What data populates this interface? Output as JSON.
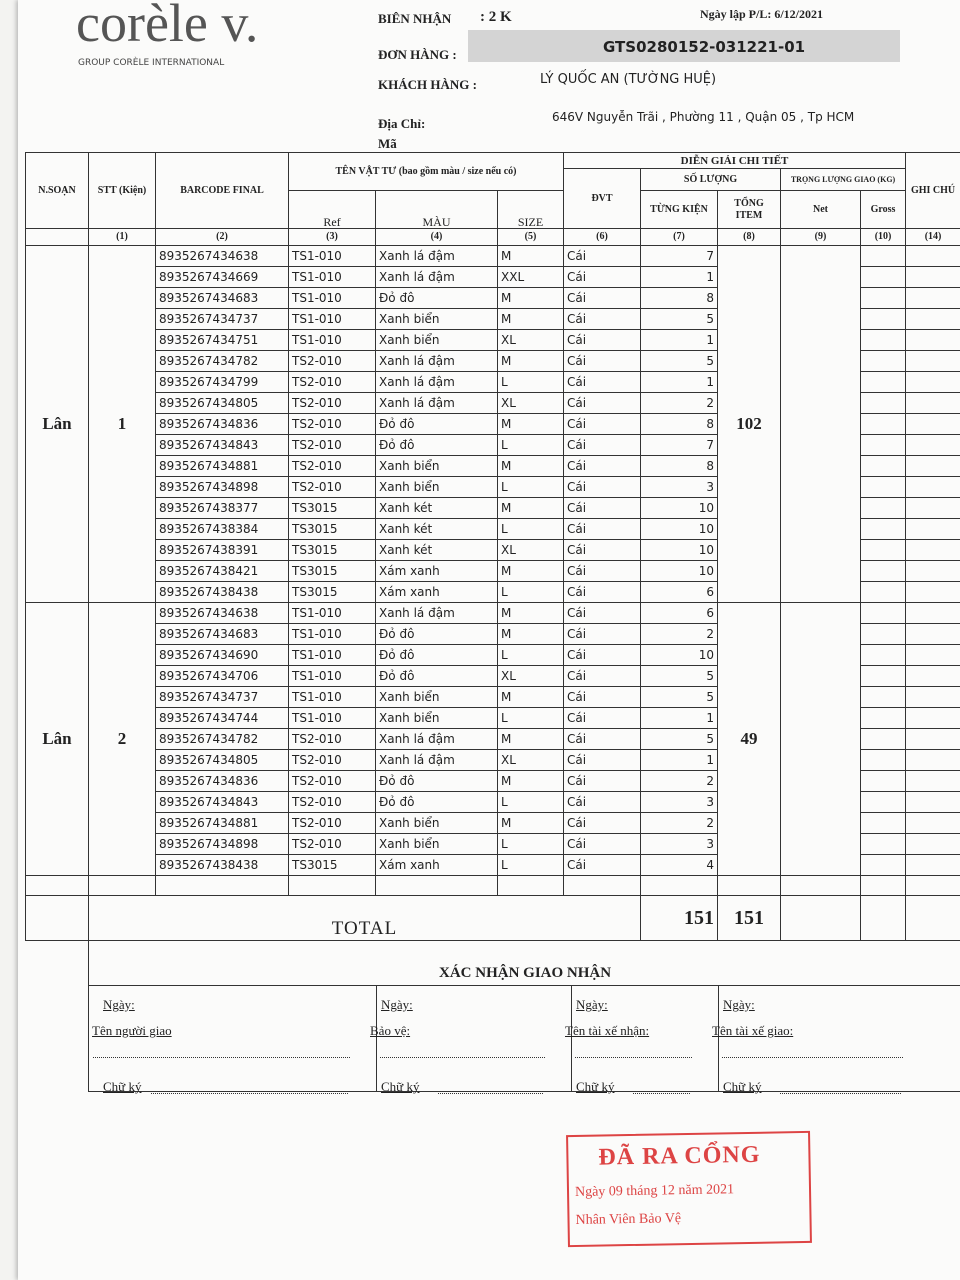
{
  "header": {
    "logo": "corèle v.",
    "logo_sub": "GROUP CORÈLE INTERNATIONAL",
    "receipt_label": "BIÊN NHẬN",
    "receipt_value": ": 2 K",
    "created": "Ngày lập P/L: 6/12/2021",
    "order_label": "ĐƠN HÀNG :",
    "order_value": "GTS0280152-031221-01",
    "customer_label": "KHÁCH HÀNG :",
    "customer_value": "LÝ QUỐC AN (TƯỜNG HUỆ)",
    "address_label": "Địa Chỉ:",
    "address_value": "646V Nguyễn Trãi , Phường 11 , Quận 05 , Tp HCM",
    "code_label": "Mã"
  },
  "table": {
    "headers": {
      "packer": "N.SOẠN",
      "stt": "STT (Kiện)",
      "barcode": "BARCODE FINAL",
      "material": "TÊN VẬT TƯ (bao gồm màu / size nếu có)",
      "ref": "Ref",
      "color": "MÀU",
      "size": "SIZE",
      "unit": "ĐVT",
      "detail": "DIỄN GIẢI CHI TIẾT",
      "quantity": "SỐ LƯỢNG",
      "per_package": "TỪNG KIỆN",
      "total_item": "TỔNG ITEM",
      "weight": "TRỌNG LƯỢNG GIAO (KG)",
      "net": "Net",
      "gross": "Gross",
      "note": "GHI CHÚ"
    },
    "col_numbers": [
      "(1)",
      "(2)",
      "(3)",
      "(4)",
      "(5)",
      "(6)",
      "(7)",
      "(8)",
      "(9)",
      "(10)",
      "(14)"
    ],
    "groups": [
      {
        "packer": "Lân",
        "stt": "1",
        "total_item": 102,
        "rows": [
          [
            "8935267434638",
            "TS1-010",
            "Xanh lá đậm",
            "M",
            "Cái",
            7
          ],
          [
            "8935267434669",
            "TS1-010",
            "Xanh lá đậm",
            "XXL",
            "Cái",
            1
          ],
          [
            "8935267434683",
            "TS1-010",
            "Đỏ đô",
            "M",
            "Cái",
            8
          ],
          [
            "8935267434737",
            "TS1-010",
            "Xanh biển",
            "M",
            "Cái",
            5
          ],
          [
            "8935267434751",
            "TS1-010",
            "Xanh biển",
            "XL",
            "Cái",
            1
          ],
          [
            "8935267434782",
            "TS2-010",
            "Xanh lá đậm",
            "M",
            "Cái",
            5
          ],
          [
            "8935267434799",
            "TS2-010",
            "Xanh lá đậm",
            "L",
            "Cái",
            1
          ],
          [
            "8935267434805",
            "TS2-010",
            "Xanh lá đậm",
            "XL",
            "Cái",
            2
          ],
          [
            "8935267434836",
            "TS2-010",
            "Đỏ đô",
            "M",
            "Cái",
            8
          ],
          [
            "8935267434843",
            "TS2-010",
            "Đỏ đô",
            "L",
            "Cái",
            7
          ],
          [
            "8935267434881",
            "TS2-010",
            "Xanh biển",
            "M",
            "Cái",
            8
          ],
          [
            "8935267434898",
            "TS2-010",
            "Xanh biển",
            "L",
            "Cái",
            3
          ],
          [
            "8935267438377",
            "TS3015",
            "Xanh két",
            "M",
            "Cái",
            10
          ],
          [
            "8935267438384",
            "TS3015",
            "Xanh két",
            "L",
            "Cái",
            10
          ],
          [
            "8935267438391",
            "TS3015",
            "Xanh két",
            "XL",
            "Cái",
            10
          ],
          [
            "8935267438421",
            "TS3015",
            "Xám xanh",
            "M",
            "Cái",
            10
          ],
          [
            "8935267438438",
            "TS3015",
            "Xám xanh",
            "L",
            "Cái",
            6
          ]
        ]
      },
      {
        "packer": "Lân",
        "stt": "2",
        "total_item": 49,
        "rows": [
          [
            "8935267434638",
            "TS1-010",
            "Xanh lá đậm",
            "M",
            "Cái",
            6
          ],
          [
            "8935267434683",
            "TS1-010",
            "Đỏ đô",
            "M",
            "Cái",
            2
          ],
          [
            "8935267434690",
            "TS1-010",
            "Đỏ đô",
            "L",
            "Cái",
            10
          ],
          [
            "8935267434706",
            "TS1-010",
            "Đỏ đô",
            "XL",
            "Cái",
            5
          ],
          [
            "8935267434737",
            "TS1-010",
            "Xanh biển",
            "M",
            "Cái",
            5
          ],
          [
            "8935267434744",
            "TS1-010",
            "Xanh biển",
            "L",
            "Cái",
            1
          ],
          [
            "8935267434782",
            "TS2-010",
            "Xanh lá đậm",
            "M",
            "Cái",
            5
          ],
          [
            "8935267434805",
            "TS2-010",
            "Xanh lá đậm",
            "XL",
            "Cái",
            1
          ],
          [
            "8935267434836",
            "TS2-010",
            "Đỏ đô",
            "M",
            "Cái",
            2
          ],
          [
            "8935267434843",
            "TS2-010",
            "Đỏ đô",
            "L",
            "Cái",
            3
          ],
          [
            "8935267434881",
            "TS2-010",
            "Xanh biển",
            "M",
            "Cái",
            2
          ],
          [
            "8935267434898",
            "TS2-010",
            "Xanh biển",
            "L",
            "Cái",
            3
          ],
          [
            "8935267438438",
            "TS3015",
            "Xám xanh",
            "L",
            "Cái",
            4
          ]
        ]
      }
    ],
    "total": {
      "label": "TOTAL",
      "per_package": 151,
      "total_item": 151
    }
  },
  "confirmation": {
    "title": "XÁC NHẬN GIAO NHẬN",
    "columns": [
      [
        "Ngày:",
        "Tên người giao",
        "Chữ ký"
      ],
      [
        "Ngày:",
        "Bảo vệ:",
        "Chữ ký"
      ],
      [
        "Ngày:",
        "Tên tài xế nhận:",
        "Chữ ký"
      ],
      [
        "Ngày:",
        "Tên tài xế giao:",
        "Chữ ký"
      ]
    ]
  },
  "stamp": {
    "title": "ĐÃ RA CỔNG",
    "date": "Ngày 09 tháng 12 năm 2021",
    "role": "Nhân Viên Bảo Vệ"
  }
}
